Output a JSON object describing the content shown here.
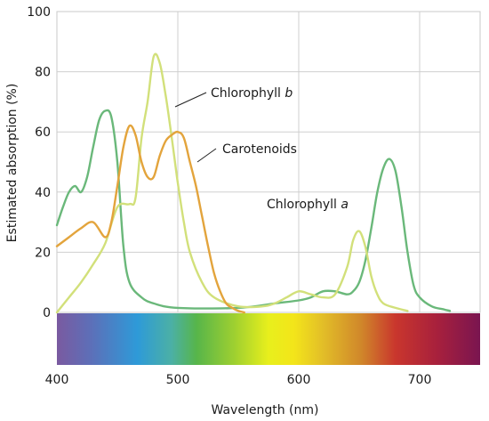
{
  "chart_data": {
    "type": "line",
    "title": "",
    "xlabel": "Wavelength (nm)",
    "ylabel": "Estimated absorption (%)",
    "xlim": [
      400,
      750
    ],
    "ylim": [
      0,
      100
    ],
    "x_ticks": [
      400,
      500,
      600,
      700
    ],
    "y_ticks": [
      0,
      20,
      40,
      60,
      80,
      100
    ],
    "grid": true,
    "legend": "none",
    "visible_spectrum_bar": true,
    "series": [
      {
        "name": "Chlorophyll a",
        "color": "#6ab87a",
        "points": [
          [
            400,
            29
          ],
          [
            405,
            35
          ],
          [
            410,
            40
          ],
          [
            415,
            42
          ],
          [
            420,
            40
          ],
          [
            425,
            45
          ],
          [
            430,
            55
          ],
          [
            435,
            64
          ],
          [
            440,
            67
          ],
          [
            445,
            65
          ],
          [
            450,
            50
          ],
          [
            455,
            22
          ],
          [
            460,
            10
          ],
          [
            470,
            5
          ],
          [
            480,
            3
          ],
          [
            500,
            1.5
          ],
          [
            550,
            1.5
          ],
          [
            580,
            3
          ],
          [
            600,
            4
          ],
          [
            610,
            5
          ],
          [
            620,
            7
          ],
          [
            630,
            7
          ],
          [
            640,
            6
          ],
          [
            645,
            7
          ],
          [
            650,
            10
          ],
          [
            655,
            17
          ],
          [
            660,
            28
          ],
          [
            665,
            40
          ],
          [
            670,
            48
          ],
          [
            675,
            51
          ],
          [
            680,
            47
          ],
          [
            685,
            35
          ],
          [
            690,
            20
          ],
          [
            695,
            9
          ],
          [
            700,
            5
          ],
          [
            710,
            2
          ],
          [
            720,
            1
          ],
          [
            725,
            0.5
          ]
        ]
      },
      {
        "name": "Chlorophyll b",
        "color": "#d2e07a",
        "points": [
          [
            400,
            0
          ],
          [
            410,
            5
          ],
          [
            420,
            10
          ],
          [
            430,
            16
          ],
          [
            440,
            23
          ],
          [
            450,
            35
          ],
          [
            460,
            36
          ],
          [
            465,
            38
          ],
          [
            470,
            58
          ],
          [
            475,
            70
          ],
          [
            480,
            85
          ],
          [
            485,
            83
          ],
          [
            490,
            72
          ],
          [
            495,
            58
          ],
          [
            500,
            43
          ],
          [
            505,
            30
          ],
          [
            510,
            20
          ],
          [
            520,
            10
          ],
          [
            530,
            5
          ],
          [
            550,
            2
          ],
          [
            570,
            2
          ],
          [
            580,
            3
          ],
          [
            590,
            5
          ],
          [
            600,
            7
          ],
          [
            610,
            6
          ],
          [
            620,
            5
          ],
          [
            630,
            6
          ],
          [
            640,
            15
          ],
          [
            645,
            24
          ],
          [
            650,
            27
          ],
          [
            655,
            22
          ],
          [
            660,
            12
          ],
          [
            665,
            6
          ],
          [
            670,
            3
          ],
          [
            680,
            1.5
          ],
          [
            690,
            0.5
          ]
        ]
      },
      {
        "name": "Carotenoids",
        "color": "#e3a43c",
        "points": [
          [
            400,
            22
          ],
          [
            410,
            25
          ],
          [
            420,
            28
          ],
          [
            430,
            30
          ],
          [
            440,
            25
          ],
          [
            445,
            30
          ],
          [
            450,
            42
          ],
          [
            455,
            55
          ],
          [
            460,
            62
          ],
          [
            465,
            59
          ],
          [
            470,
            50
          ],
          [
            475,
            45
          ],
          [
            480,
            45
          ],
          [
            485,
            52
          ],
          [
            490,
            57
          ],
          [
            495,
            59
          ],
          [
            500,
            60
          ],
          [
            505,
            58
          ],
          [
            510,
            50
          ],
          [
            515,
            42
          ],
          [
            520,
            32
          ],
          [
            525,
            22
          ],
          [
            530,
            13
          ],
          [
            535,
            7
          ],
          [
            540,
            3
          ],
          [
            545,
            1.5
          ],
          [
            550,
            0.5
          ],
          [
            555,
            0
          ]
        ]
      }
    ],
    "annotations": [
      {
        "text_main": "Chlorophyll ",
        "text_italic": "b",
        "series": "Chlorophyll b"
      },
      {
        "text_main": "Carotenoids",
        "text_italic": "",
        "series": "Carotenoids"
      },
      {
        "text_main": "Chlorophyll ",
        "text_italic": "a",
        "series": "Chlorophyll a"
      }
    ]
  }
}
